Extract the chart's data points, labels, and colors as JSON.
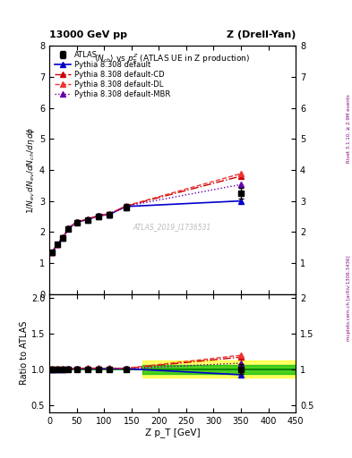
{
  "title_top": "13000 GeV pp",
  "title_top_right": "Z (Drell-Yan)",
  "watermark": "ATLAS_2019_I1736531",
  "ylabel_ratio": "Ratio to ATLAS",
  "xlabel": "Z p_T [GeV]",
  "right_label_top": "Rivet 3.1.10, ≥ 2.9M events",
  "right_label_bottom": "mcplots.cern.ch [arXiv:1306.3436]",
  "ylim_main": [
    0,
    8
  ],
  "ylim_ratio": [
    0.4,
    2.05
  ],
  "xlim": [
    0,
    450
  ],
  "atlas_x": [
    5,
    15,
    25,
    35,
    50,
    70,
    90,
    110,
    140,
    350
  ],
  "atlas_y": [
    1.35,
    1.6,
    1.82,
    2.1,
    2.3,
    2.38,
    2.5,
    2.55,
    2.8,
    3.25
  ],
  "atlas_yerr": [
    0.05,
    0.05,
    0.06,
    0.07,
    0.07,
    0.07,
    0.08,
    0.08,
    0.09,
    0.18
  ],
  "pythia_default_x": [
    5,
    15,
    25,
    35,
    50,
    70,
    90,
    110,
    140,
    350
  ],
  "pythia_default_y": [
    1.35,
    1.6,
    1.82,
    2.11,
    2.32,
    2.4,
    2.52,
    2.57,
    2.82,
    3.0
  ],
  "pythia_cd_x": [
    5,
    15,
    25,
    35,
    50,
    70,
    90,
    110,
    140,
    350
  ],
  "pythia_cd_y": [
    1.36,
    1.61,
    1.83,
    2.12,
    2.33,
    2.41,
    2.53,
    2.58,
    2.83,
    3.8
  ],
  "pythia_dl_x": [
    5,
    15,
    25,
    35,
    50,
    70,
    90,
    110,
    140,
    350
  ],
  "pythia_dl_y": [
    1.36,
    1.61,
    1.83,
    2.12,
    2.33,
    2.42,
    2.54,
    2.59,
    2.84,
    3.88
  ],
  "pythia_mbr_x": [
    5,
    15,
    25,
    35,
    50,
    70,
    90,
    110,
    140,
    350
  ],
  "pythia_mbr_y": [
    1.35,
    1.6,
    1.82,
    2.11,
    2.32,
    2.4,
    2.52,
    2.57,
    2.83,
    3.53
  ],
  "ratio_default_y": [
    1.0,
    1.0,
    1.0,
    1.005,
    1.009,
    1.009,
    1.008,
    1.008,
    1.007,
    0.923
  ],
  "ratio_cd_y": [
    1.007,
    1.006,
    1.005,
    1.01,
    1.013,
    1.013,
    1.012,
    1.012,
    1.011,
    1.169
  ],
  "ratio_dl_y": [
    1.007,
    1.006,
    1.005,
    1.01,
    1.013,
    1.016,
    1.016,
    1.016,
    1.014,
    1.195
  ],
  "ratio_mbr_y": [
    1.0,
    1.0,
    1.0,
    1.005,
    1.009,
    1.009,
    1.008,
    1.008,
    1.007,
    1.085
  ],
  "atlas_ratio_yerr": [
    0.038,
    0.031,
    0.033,
    0.033,
    0.03,
    0.03,
    0.032,
    0.032,
    0.032,
    0.068
  ],
  "color_atlas": "#000000",
  "color_default": "#0000cc",
  "color_cd": "#cc0000",
  "color_dl": "#ee3333",
  "color_mbr": "#6600aa",
  "band_yellow": "#ffff00",
  "band_green": "#00bb00",
  "band_yellow_alpha": 0.6,
  "band_green_alpha": 0.7,
  "band_x_start": 170,
  "band_x_end": 450,
  "band_yellow_low": 0.88,
  "band_yellow_high": 1.12,
  "band_green_low": 0.94,
  "band_green_high": 1.06
}
